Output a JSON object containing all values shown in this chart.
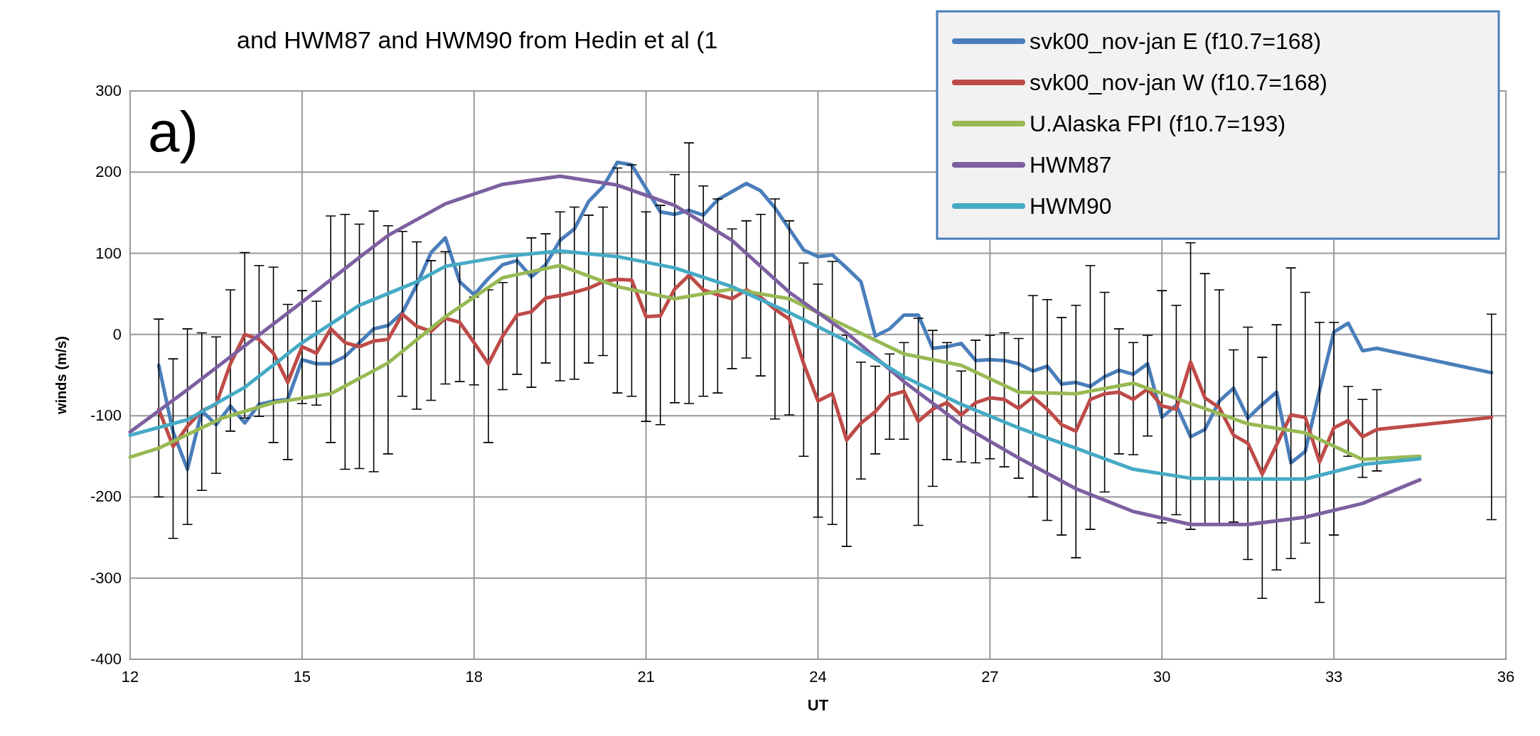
{
  "chart_data": {
    "type": "line",
    "title": "and HWM87 and HWM90 from Hedin et al (1",
    "annotations": [
      "a)"
    ],
    "xlabel": "UT",
    "ylabel": "winds (m/s)",
    "xlim": [
      12,
      36
    ],
    "ylim": [
      -400,
      300
    ],
    "xticks": [
      12,
      15,
      18,
      21,
      24,
      27,
      30,
      33,
      36
    ],
    "yticks": [
      -400,
      -300,
      -200,
      -100,
      0,
      100,
      200,
      300
    ],
    "grid": true,
    "legend": "top right",
    "series": [
      {
        "name": "svk00_nov-jan E (f10.7=168)",
        "color": "#4a7ebb",
        "x": [
          12.5,
          12.75,
          13,
          13.25,
          13.5,
          13.75,
          14,
          14.25,
          14.5,
          14.75,
          15,
          15.25,
          15.5,
          15.75,
          16,
          16.25,
          16.5,
          16.75,
          17,
          17.25,
          17.5,
          17.75,
          18,
          18.25,
          18.5,
          18.75,
          19,
          19.25,
          19.5,
          19.75,
          20,
          20.25,
          20.5,
          20.75,
          21,
          21.25,
          21.5,
          21.75,
          22,
          22.25,
          22.5,
          22.75,
          23,
          23.25,
          23.5,
          23.75,
          24,
          24.25,
          24.5,
          24.75,
          25,
          25.25,
          25.5,
          25.75,
          26,
          26.25,
          26.5,
          26.75,
          27,
          27.25,
          27.5,
          27.75,
          28,
          28.25,
          28.5,
          28.75,
          29,
          29.25,
          29.5,
          29.75,
          30,
          30.25,
          30.5,
          30.75,
          31,
          31.25,
          31.5,
          31.75,
          32,
          32.25,
          32.5,
          32.75,
          33,
          33.25,
          33.5,
          33.75,
          35.75
        ],
        "values": [
          -38,
          -120,
          -166,
          -94,
          -111,
          -88,
          -109,
          -86,
          -82,
          -80,
          -31,
          -36,
          -36,
          -27,
          -10,
          7,
          11,
          27,
          61,
          101,
          119,
          65,
          49,
          69,
          86,
          91,
          71,
          86,
          116,
          130,
          164,
          182,
          212,
          209,
          180,
          151,
          148,
          153,
          147,
          166,
          176,
          186,
          177,
          156,
          130,
          104,
          96,
          98,
          82,
          65,
          -2,
          7,
          24,
          24,
          -17,
          -15,
          -11,
          -32,
          -31,
          -32,
          -36,
          -45,
          -39,
          -61,
          -59,
          -64,
          -52,
          -44,
          -49,
          -36,
          -102,
          -87,
          -126,
          -117,
          -82,
          -66,
          -103,
          -86,
          -71,
          -158,
          -144,
          -69,
          3,
          14,
          -20,
          -17,
          -47
        ]
      },
      {
        "name": "svk00_nov-jan W (f10.7=168)",
        "color": "#be4b48",
        "x": [
          12.5,
          12.75,
          13,
          13.25,
          13.5,
          13.75,
          14,
          14.25,
          14.5,
          14.75,
          15,
          15.25,
          15.5,
          15.75,
          16,
          16.25,
          16.5,
          16.75,
          17,
          17.25,
          17.5,
          17.75,
          18,
          18.25,
          18.5,
          18.75,
          19,
          19.25,
          19.5,
          19.75,
          20,
          20.25,
          20.5,
          20.75,
          21,
          21.25,
          21.5,
          21.75,
          22,
          22.25,
          22.5,
          22.75,
          23,
          23.25,
          23.5,
          23.75,
          24,
          24.25,
          24.5,
          24.75,
          25,
          25.25,
          25.5,
          25.75,
          26,
          26.25,
          26.5,
          26.75,
          27,
          27.25,
          27.5,
          27.75,
          28,
          28.25,
          28.5,
          28.75,
          29,
          29.25,
          29.5,
          29.75,
          30,
          30.25,
          30.5,
          30.75,
          31,
          31.25,
          31.5,
          31.75,
          32,
          32.25,
          32.5,
          32.75,
          33,
          33.25,
          33.5,
          33.75,
          35.75
        ],
        "values": [
          -92,
          -138,
          -113,
          -94,
          -86,
          -36,
          0,
          -6,
          -23,
          -59,
          -15,
          -23,
          7,
          -10,
          -15,
          -8,
          -6,
          25,
          10,
          4,
          20,
          15,
          -10,
          -36,
          -2,
          24,
          28,
          45,
          48,
          52,
          57,
          65,
          68,
          67,
          22,
          23,
          56,
          73,
          55,
          49,
          44,
          55,
          46,
          31,
          19,
          -36,
          -82,
          -73,
          -130,
          -109,
          -95,
          -75,
          -70,
          -107,
          -92,
          -84,
          -99,
          -84,
          -78,
          -80,
          -91,
          -77,
          -92,
          -111,
          -119,
          -80,
          -73,
          -71,
          -80,
          -67,
          -88,
          -92,
          -34,
          -78,
          -90,
          -124,
          -134,
          -172,
          -136,
          -99,
          -102,
          -157,
          -115,
          -106,
          -126,
          -117,
          -102
        ],
        "errors": [
          [
            -200,
            19
          ],
          [
            -251,
            -30
          ],
          [
            -234,
            7
          ],
          [
            -192,
            2
          ],
          [
            -171,
            -3
          ],
          [
            -119,
            55
          ],
          [
            -103,
            101
          ],
          [
            -101,
            85
          ],
          [
            -133,
            83
          ],
          [
            -154,
            37
          ],
          [
            -85,
            54
          ],
          [
            -87,
            41
          ],
          [
            -133,
            146
          ],
          [
            -166,
            148
          ],
          [
            -165,
            136
          ],
          [
            -169,
            152
          ],
          [
            -147,
            134
          ],
          [
            -76,
            127
          ],
          [
            -92,
            114
          ],
          [
            -81,
            91
          ],
          [
            -61,
            102
          ],
          [
            -58,
            87
          ],
          [
            -62,
            46
          ],
          [
            -133,
            55
          ],
          [
            -68,
            64
          ],
          [
            -49,
            98
          ],
          [
            -65,
            119
          ],
          [
            -35,
            124
          ],
          [
            -57,
            151
          ],
          [
            -55,
            157
          ],
          [
            -35,
            147
          ],
          [
            -26,
            157
          ],
          [
            -72,
            205
          ],
          [
            -76,
            209
          ],
          [
            -107,
            151
          ],
          [
            -111,
            159
          ],
          [
            -84,
            197
          ],
          [
            -85,
            236
          ],
          [
            -76,
            183
          ],
          [
            -72,
            167
          ],
          [
            -42,
            130
          ],
          [
            -29,
            140
          ],
          [
            -51,
            148
          ],
          [
            -104,
            167
          ],
          [
            -99,
            140
          ],
          [
            -150,
            88
          ],
          [
            -225,
            62
          ],
          [
            -234,
            90
          ],
          [
            -261,
            -1
          ],
          [
            -178,
            -34
          ],
          [
            -147,
            -39
          ],
          [
            -129,
            -24
          ],
          [
            -129,
            -10
          ],
          [
            -235,
            20
          ],
          [
            -187,
            5
          ],
          [
            -154,
            -10
          ],
          [
            -157,
            -45
          ],
          [
            -158,
            -7
          ],
          [
            -153,
            -1
          ],
          [
            -163,
            2
          ],
          [
            -177,
            -5
          ],
          [
            -200,
            48
          ],
          [
            -229,
            43
          ],
          [
            -247,
            21
          ],
          [
            -275,
            36
          ],
          [
            -240,
            85
          ],
          [
            -194,
            52
          ],
          [
            -147,
            7
          ],
          [
            -148,
            -10
          ],
          [
            -125,
            -1
          ],
          [
            -232,
            54
          ],
          [
            -222,
            36
          ],
          [
            -240,
            113
          ],
          [
            -234,
            75
          ],
          [
            -234,
            55
          ],
          [
            -231,
            -19
          ],
          [
            -277,
            9
          ],
          [
            -325,
            -28
          ],
          [
            -290,
            12
          ],
          [
            -276,
            82
          ],
          [
            -257,
            52
          ],
          [
            -330,
            15
          ],
          [
            -247,
            15
          ],
          [
            -150,
            -64
          ],
          [
            -176,
            -80
          ],
          [
            -168,
            -68
          ],
          [
            -228,
            25
          ]
        ]
      },
      {
        "name": "U.Alaska FPI (f10.7=193)",
        "color": "#98b954",
        "x": [
          12,
          12.5,
          13.25,
          13.6,
          14.5,
          15.5,
          16.5,
          17.5,
          18.5,
          19.5,
          20.5,
          21.5,
          22.5,
          23.5,
          24.5,
          25.5,
          26.5,
          27.5,
          28.5,
          29.5,
          30.5,
          31.5,
          32.5,
          33.5,
          34.5
        ],
        "values": [
          -151,
          -140,
          -115,
          -103,
          -84,
          -73,
          -35,
          22,
          70,
          85,
          59,
          44,
          56,
          44,
          10,
          -24,
          -38,
          -71,
          -73,
          -60,
          -85,
          -110,
          -121,
          -154,
          -150
        ]
      },
      {
        "name": "HWM87",
        "color": "#7d60a0",
        "x": [
          12,
          13,
          14,
          15,
          16,
          16.5,
          17.5,
          18.5,
          19.5,
          20.5,
          21.5,
          22.5,
          23.5,
          24.5,
          25.5,
          26.5,
          27.5,
          28.5,
          29.5,
          30.5,
          31.5,
          32.5,
          33.5,
          34.5
        ],
        "values": [
          -120,
          -68,
          -14,
          40,
          95,
          122,
          161,
          185,
          195,
          184,
          159,
          116,
          52,
          2,
          -58,
          -111,
          -152,
          -190,
          -218,
          -234,
          -234,
          -225,
          -208,
          -179
        ]
      },
      {
        "name": "HWM90",
        "color": "#46aac5",
        "x": [
          12,
          13,
          14,
          15,
          16,
          17,
          17.5,
          18.5,
          19.5,
          20.5,
          21.5,
          22.5,
          23.5,
          24.5,
          25.5,
          26.5,
          27.5,
          28.5,
          29.5,
          30.5,
          31.5,
          32.5,
          33.5,
          34.5
        ],
        "values": [
          -124,
          -105,
          -65,
          -10,
          36,
          65,
          84,
          96,
          103,
          96,
          82,
          59,
          27,
          -8,
          -52,
          -86,
          -115,
          -140,
          -166,
          -177,
          -178,
          -178,
          -160,
          -153
        ]
      }
    ]
  }
}
